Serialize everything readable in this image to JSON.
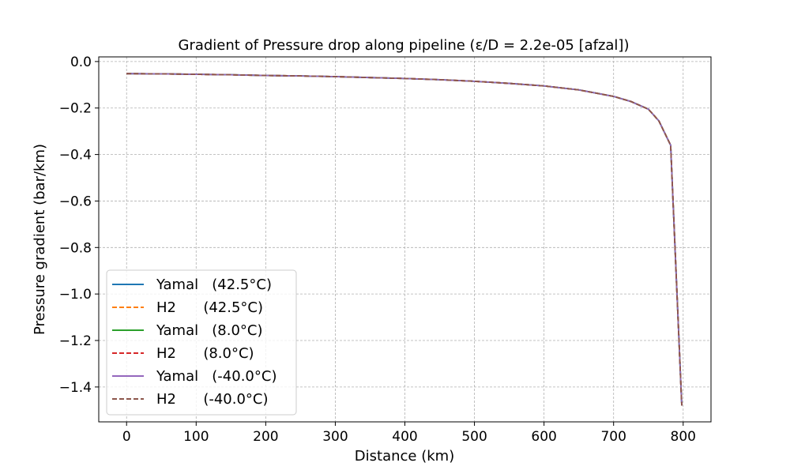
{
  "chart_data": {
    "type": "line",
    "title": "Gradient of Pressure drop along pipeline (ε/D = 2.2e-05 [afzal])",
    "xlabel": "Distance (km)",
    "ylabel": "Pressure gradient (bar/km)",
    "xlim": [
      -40,
      840
    ],
    "ylim": [
      -1.55,
      0.02
    ],
    "xticks": [
      0,
      100,
      200,
      300,
      400,
      500,
      600,
      700,
      800
    ],
    "yticks": [
      0.0,
      -0.2,
      -0.4,
      -0.6,
      -0.8,
      -1.0,
      -1.2,
      -1.4
    ],
    "xtick_labels": [
      "0",
      "100",
      "200",
      "300",
      "400",
      "500",
      "600",
      "700",
      "800"
    ],
    "ytick_labels": [
      "0.0",
      "−0.2",
      "−0.4",
      "−0.6",
      "−0.8",
      "−1.0",
      "−1.2",
      "−1.4"
    ],
    "grid": true,
    "legend_position": "lower-left",
    "x": [
      0,
      50,
      100,
      150,
      200,
      250,
      300,
      350,
      400,
      450,
      500,
      550,
      600,
      650,
      700,
      725,
      750,
      765,
      782,
      798
    ],
    "series": [
      {
        "name": "Yamal   (42.5°C)",
        "color": "#1f77b4",
        "dash": "solid",
        "values": [
          -0.052,
          -0.053,
          -0.055,
          -0.057,
          -0.06,
          -0.062,
          -0.065,
          -0.069,
          -0.073,
          -0.078,
          -0.085,
          -0.094,
          -0.105,
          -0.122,
          -0.15,
          -0.172,
          -0.205,
          -0.255,
          -0.36,
          -1.48
        ]
      },
      {
        "name": "H2      (42.5°C)",
        "color": "#ff7f0e",
        "dash": "dashed",
        "values": [
          -0.052,
          -0.053,
          -0.055,
          -0.057,
          -0.06,
          -0.062,
          -0.065,
          -0.069,
          -0.073,
          -0.078,
          -0.085,
          -0.094,
          -0.105,
          -0.122,
          -0.15,
          -0.172,
          -0.205,
          -0.255,
          -0.36,
          -1.48
        ]
      },
      {
        "name": "Yamal   (8.0°C)",
        "color": "#2ca02c",
        "dash": "solid",
        "values": [
          -0.052,
          -0.053,
          -0.055,
          -0.057,
          -0.06,
          -0.062,
          -0.065,
          -0.069,
          -0.073,
          -0.078,
          -0.085,
          -0.094,
          -0.105,
          -0.122,
          -0.15,
          -0.172,
          -0.205,
          -0.255,
          -0.36,
          -1.48
        ]
      },
      {
        "name": "H2      (8.0°C)",
        "color": "#d62728",
        "dash": "dashed",
        "values": [
          -0.052,
          -0.053,
          -0.055,
          -0.057,
          -0.06,
          -0.062,
          -0.065,
          -0.069,
          -0.073,
          -0.078,
          -0.085,
          -0.094,
          -0.105,
          -0.122,
          -0.15,
          -0.172,
          -0.205,
          -0.255,
          -0.36,
          -1.48
        ]
      },
      {
        "name": "Yamal   (-40.0°C)",
        "color": "#9467bd",
        "dash": "solid",
        "values": [
          -0.052,
          -0.053,
          -0.055,
          -0.057,
          -0.06,
          -0.062,
          -0.065,
          -0.069,
          -0.073,
          -0.078,
          -0.085,
          -0.094,
          -0.105,
          -0.122,
          -0.15,
          -0.172,
          -0.205,
          -0.255,
          -0.36,
          -1.48
        ]
      },
      {
        "name": "H2      (-40.0°C)",
        "color": "#8c564b",
        "dash": "dashed",
        "values": [
          -0.052,
          -0.053,
          -0.055,
          -0.057,
          -0.06,
          -0.062,
          -0.065,
          -0.069,
          -0.073,
          -0.078,
          -0.085,
          -0.094,
          -0.105,
          -0.122,
          -0.15,
          -0.172,
          -0.205,
          -0.255,
          -0.36,
          -1.48
        ]
      }
    ]
  }
}
